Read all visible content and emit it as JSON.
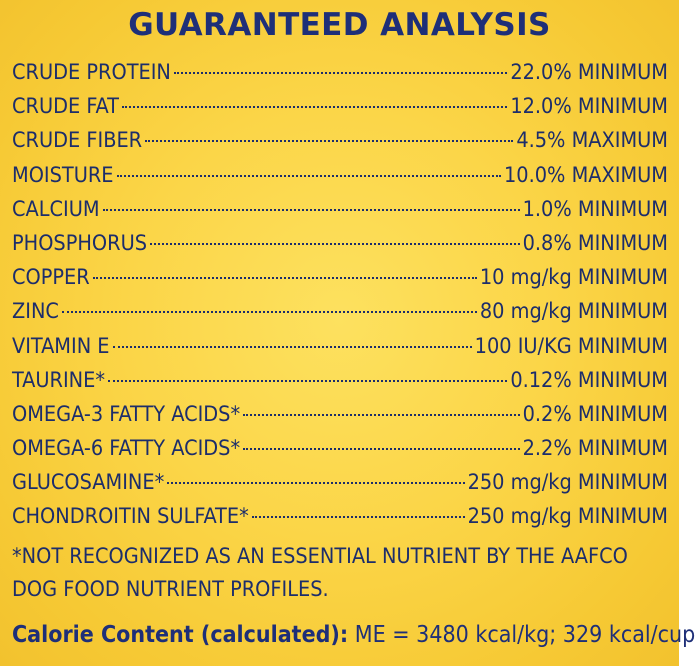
{
  "title": "GUARANTEED ANALYSIS",
  "rows": [
    {
      "name": "CRUDE PROTEIN",
      "value": "22.0% MINIMUM"
    },
    {
      "name": "CRUDE FAT",
      "value": "12.0% MINIMUM"
    },
    {
      "name": "CRUDE FIBER",
      "value": "4.5% MAXIMUM"
    },
    {
      "name": "MOISTURE",
      "value": "10.0% MAXIMUM"
    },
    {
      "name": "CALCIUM",
      "value": "1.0% MINIMUM"
    },
    {
      "name": "PHOSPHORUS",
      "value": "0.8% MINIMUM"
    },
    {
      "name": "COPPER",
      "value": "10 mg/kg MINIMUM"
    },
    {
      "name": "ZINC",
      "value": "80 mg/kg MINIMUM"
    },
    {
      "name": "VITAMIN E",
      "value": "100 IU/KG MINIMUM"
    },
    {
      "name": "TAURINE*",
      "value": "0.12% MINIMUM"
    },
    {
      "name": "OMEGA-3 FATTY ACIDS*",
      "value": "0.2% MINIMUM"
    },
    {
      "name": "OMEGA-6 FATTY ACIDS*",
      "value": "2.2% MINIMUM"
    },
    {
      "name": "GLUCOSAMINE*",
      "value": "250 mg/kg MINIMUM"
    },
    {
      "name": "CHONDROITIN SULFATE*",
      "value": "250 mg/kg MINIMUM"
    }
  ],
  "footnote": "*NOT RECOGNIZED AS AN ESSENTIAL NUTRIENT BY THE AAFCO DOG FOOD NUTRIENT PROFILES.",
  "calorie": {
    "label": "Calorie Content (calculated):",
    "value": "ME = 3480 kcal/kg; 329 kcal/cup"
  },
  "colors": {
    "background": "#fbd547",
    "text": "#1c2d6b"
  }
}
